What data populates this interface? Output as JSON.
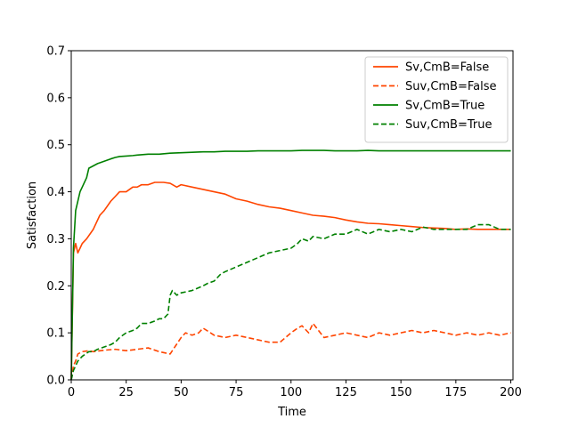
{
  "chart_data": {
    "type": "line",
    "title": "",
    "xlabel": "Time",
    "ylabel": "Satisfaction",
    "xlim": [
      0,
      201
    ],
    "ylim": [
      0,
      0.7
    ],
    "xticks": [
      0,
      25,
      50,
      75,
      100,
      125,
      150,
      175,
      200
    ],
    "yticks": [
      0.0,
      0.1,
      0.2,
      0.3,
      0.4,
      0.5,
      0.6,
      0.7
    ],
    "grid": false,
    "legend_position": "top-right",
    "series": [
      {
        "name": "Sv,CmB=False",
        "color": "#ff4500",
        "style": "solid",
        "x": [
          0,
          1,
          2,
          3,
          4,
          5,
          7,
          10,
          13,
          15,
          18,
          20,
          22,
          25,
          28,
          30,
          32,
          35,
          38,
          40,
          42,
          45,
          48,
          50,
          55,
          60,
          65,
          70,
          75,
          80,
          85,
          90,
          95,
          100,
          105,
          110,
          115,
          120,
          125,
          130,
          135,
          140,
          145,
          150,
          155,
          160,
          165,
          170,
          175,
          180,
          185,
          190,
          195,
          200
        ],
        "y": [
          0.0,
          0.27,
          0.29,
          0.27,
          0.28,
          0.29,
          0.3,
          0.32,
          0.35,
          0.36,
          0.38,
          0.39,
          0.4,
          0.4,
          0.41,
          0.41,
          0.415,
          0.415,
          0.42,
          0.42,
          0.42,
          0.418,
          0.41,
          0.415,
          0.41,
          0.405,
          0.4,
          0.395,
          0.385,
          0.38,
          0.373,
          0.368,
          0.365,
          0.36,
          0.355,
          0.35,
          0.348,
          0.345,
          0.34,
          0.336,
          0.333,
          0.332,
          0.33,
          0.328,
          0.326,
          0.324,
          0.323,
          0.322,
          0.32,
          0.321,
          0.32,
          0.32,
          0.32,
          0.32
        ]
      },
      {
        "name": "Suv,CmB=False",
        "color": "#ff4500",
        "style": "dashed",
        "x": [
          0,
          1,
          2,
          3,
          5,
          8,
          10,
          15,
          20,
          25,
          30,
          35,
          40,
          45,
          50,
          52,
          55,
          58,
          60,
          65,
          70,
          75,
          80,
          85,
          90,
          95,
          100,
          103,
          105,
          108,
          110,
          115,
          120,
          125,
          130,
          135,
          140,
          145,
          150,
          155,
          160,
          165,
          170,
          175,
          180,
          185,
          190,
          195,
          200
        ],
        "y": [
          0.0,
          0.03,
          0.04,
          0.055,
          0.06,
          0.062,
          0.06,
          0.063,
          0.065,
          0.062,
          0.065,
          0.068,
          0.06,
          0.055,
          0.09,
          0.1,
          0.095,
          0.1,
          0.11,
          0.095,
          0.09,
          0.095,
          0.09,
          0.085,
          0.08,
          0.08,
          0.1,
          0.11,
          0.115,
          0.1,
          0.12,
          0.09,
          0.095,
          0.1,
          0.095,
          0.09,
          0.1,
          0.095,
          0.1,
          0.105,
          0.1,
          0.105,
          0.1,
          0.095,
          0.1,
          0.095,
          0.1,
          0.095,
          0.1
        ]
      },
      {
        "name": "Sv,CmB=True",
        "color": "#008000",
        "style": "solid",
        "x": [
          0,
          1,
          2,
          3,
          4,
          5,
          7,
          8,
          10,
          12,
          15,
          18,
          20,
          22,
          25,
          28,
          30,
          35,
          40,
          45,
          50,
          55,
          60,
          65,
          70,
          75,
          80,
          85,
          90,
          95,
          100,
          105,
          110,
          115,
          120,
          125,
          130,
          135,
          140,
          145,
          150,
          155,
          160,
          165,
          170,
          175,
          180,
          185,
          190,
          195,
          200
        ],
        "y": [
          0.0,
          0.28,
          0.36,
          0.38,
          0.4,
          0.41,
          0.43,
          0.45,
          0.455,
          0.46,
          0.465,
          0.47,
          0.473,
          0.475,
          0.476,
          0.477,
          0.478,
          0.48,
          0.48,
          0.482,
          0.483,
          0.484,
          0.485,
          0.485,
          0.486,
          0.486,
          0.486,
          0.487,
          0.487,
          0.487,
          0.487,
          0.488,
          0.488,
          0.488,
          0.487,
          0.487,
          0.487,
          0.488,
          0.487,
          0.487,
          0.487,
          0.487,
          0.487,
          0.487,
          0.487,
          0.487,
          0.487,
          0.487,
          0.487,
          0.487,
          0.487
        ]
      },
      {
        "name": "Suv,CmB=True",
        "color": "#008000",
        "style": "dashed",
        "x": [
          0,
          1,
          2,
          3,
          5,
          8,
          10,
          12,
          15,
          18,
          20,
          22,
          25,
          28,
          30,
          32,
          35,
          38,
          40,
          42,
          44,
          45,
          46,
          48,
          50,
          55,
          60,
          62,
          65,
          68,
          70,
          75,
          80,
          85,
          90,
          95,
          100,
          103,
          105,
          108,
          110,
          115,
          120,
          125,
          130,
          135,
          140,
          145,
          150,
          155,
          160,
          165,
          170,
          175,
          180,
          185,
          190,
          195,
          200
        ],
        "y": [
          0.0,
          0.02,
          0.03,
          0.04,
          0.05,
          0.06,
          0.06,
          0.065,
          0.07,
          0.075,
          0.08,
          0.09,
          0.1,
          0.105,
          0.11,
          0.12,
          0.12,
          0.125,
          0.13,
          0.13,
          0.14,
          0.18,
          0.19,
          0.18,
          0.185,
          0.19,
          0.2,
          0.205,
          0.21,
          0.225,
          0.23,
          0.24,
          0.25,
          0.26,
          0.27,
          0.275,
          0.28,
          0.29,
          0.3,
          0.295,
          0.305,
          0.3,
          0.31,
          0.31,
          0.32,
          0.31,
          0.32,
          0.315,
          0.32,
          0.315,
          0.325,
          0.32,
          0.32,
          0.32,
          0.32,
          0.33,
          0.33,
          0.32,
          0.32
        ]
      }
    ]
  }
}
